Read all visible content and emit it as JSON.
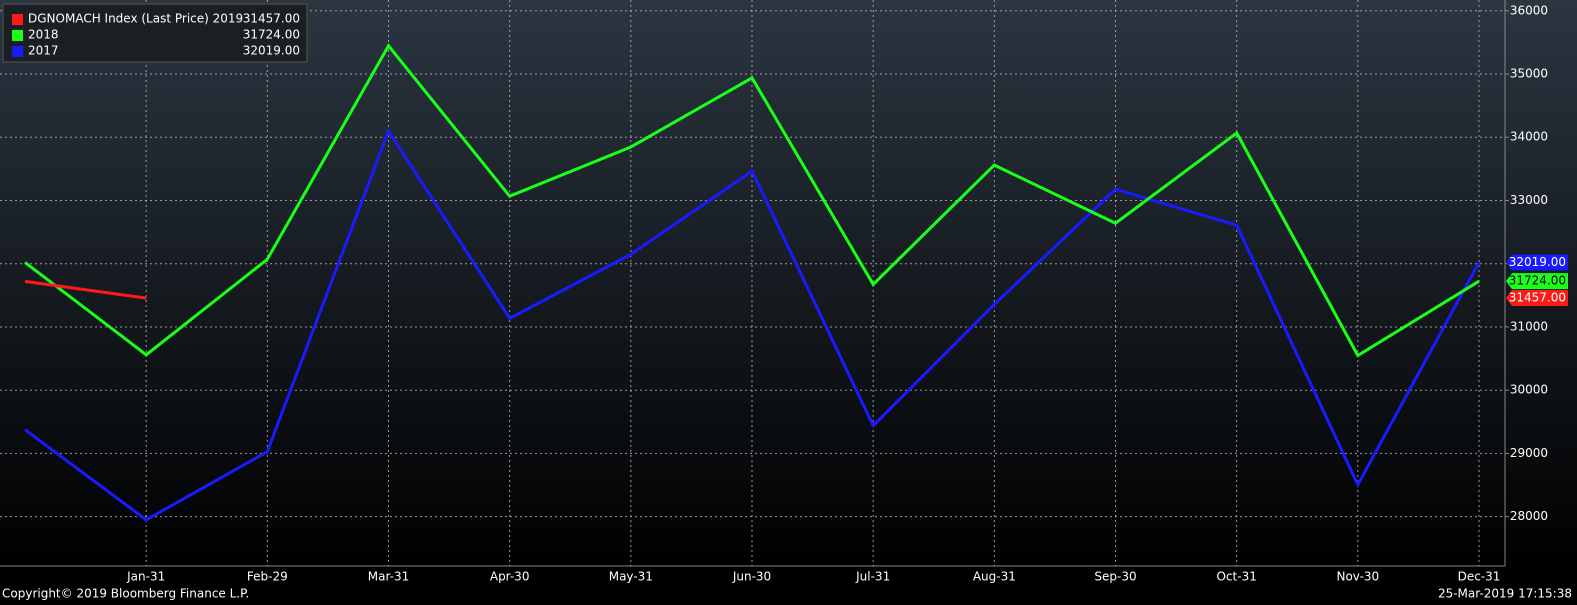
{
  "chart_data": {
    "type": "line",
    "categories": [
      null,
      "Jan-31",
      "Feb-29",
      "Mar-31",
      "Apr-30",
      "May-31",
      "Jun-30",
      "Jul-31",
      "Aug-31",
      "Sep-30",
      "Oct-31",
      "Nov-30",
      "Dec-31"
    ],
    "series": [
      {
        "name": "DGNOMACH Index (Last Price) 2019",
        "color": "#ff1a1a",
        "values": [
          31720,
          31457,
          null,
          null,
          null,
          null,
          null,
          null,
          null,
          null,
          null,
          null,
          null
        ],
        "value_labels": [
          null,
          "31457.00",
          null,
          null,
          null,
          null,
          null,
          null,
          null,
          null,
          null,
          null,
          null
        ]
      },
      {
        "name": "2018",
        "color": "#1aff1a",
        "values": [
          32020,
          30560,
          32070,
          35445,
          33068,
          33845,
          34938,
          31673,
          33560,
          32640,
          34067,
          30548,
          31724
        ],
        "value_labels": [
          null,
          null,
          null,
          null,
          null,
          null,
          null,
          null,
          null,
          null,
          null,
          null,
          "31724.00"
        ]
      },
      {
        "name": "2017",
        "color": "#1a1aff",
        "values": [
          29376,
          27950,
          29027,
          34098,
          31135,
          32149,
          33464,
          29439,
          31357,
          33179,
          32609,
          28504,
          32019
        ],
        "value_labels": [
          null,
          null,
          null,
          null,
          null,
          null,
          null,
          null,
          null,
          null,
          null,
          null,
          "32019.00"
        ]
      }
    ],
    "ylim": [
      27220,
      36170
    ],
    "yticks": [
      28000,
      29000,
      30000,
      31000,
      32000,
      33000,
      34000,
      35000,
      36000
    ],
    "grid": true,
    "y_axis_side": "right",
    "legend": "top-left",
    "footer_left": "Copyright© 2019 Bloomberg Finance L.P.",
    "footer_right": "25-Mar-2019 17:15:38"
  }
}
